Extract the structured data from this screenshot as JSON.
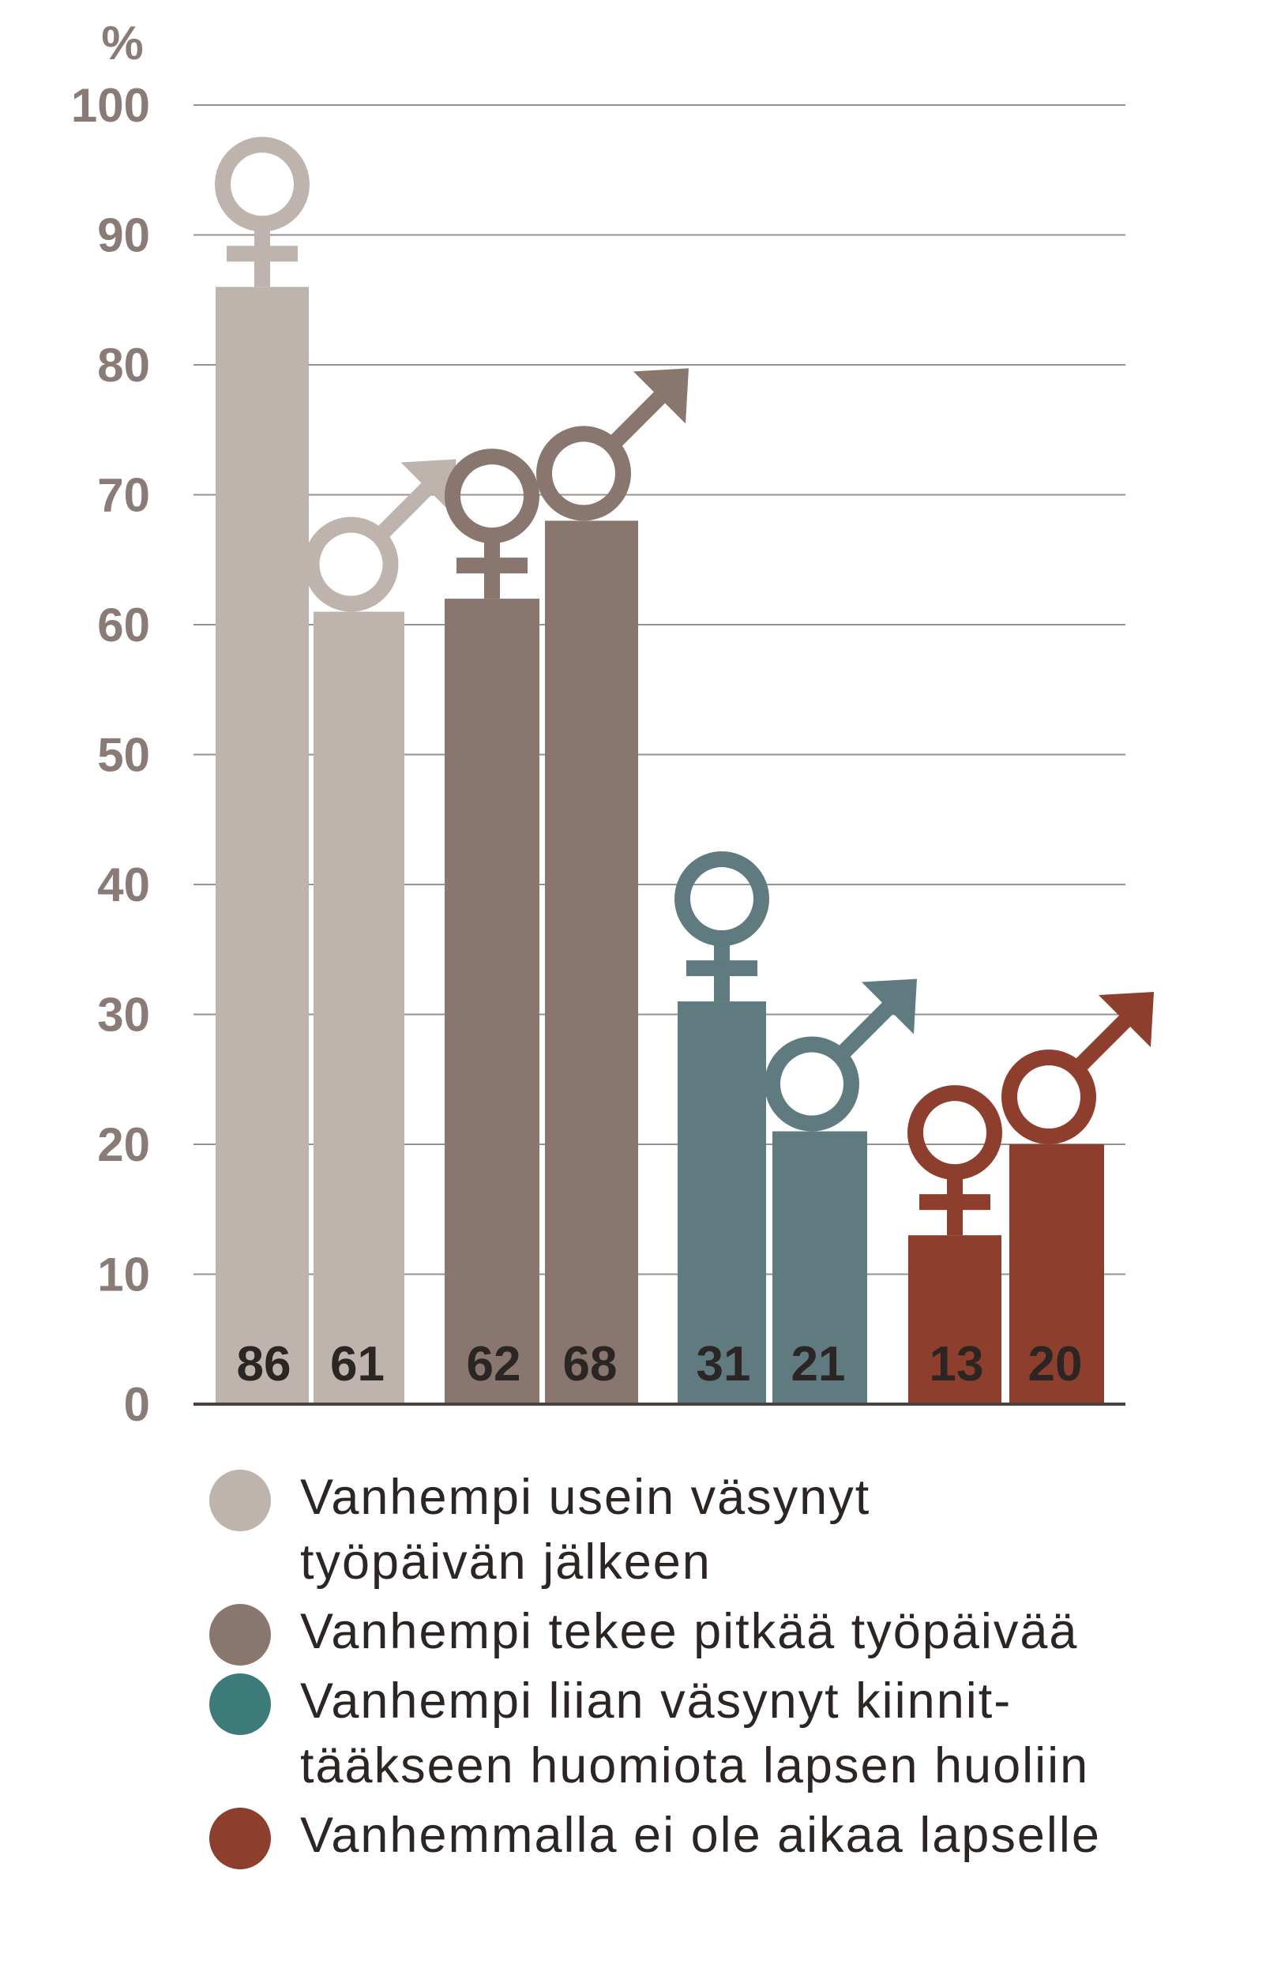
{
  "chart_data": {
    "type": "bar",
    "ylabel": "%",
    "ylim": [
      0,
      100
    ],
    "yticks": [
      "0",
      "10",
      "20",
      "30",
      "40",
      "50",
      "60",
      "70",
      "80",
      "90",
      "100"
    ],
    "grid": true,
    "categories": [
      "Vanhempi usein väsynyt\ntyöpäivän jälkeen",
      "Vanhempi tekee pitkää työpäivää",
      "Vanhempi liian väsynyt kiinnit-\ntääkseen huomiota lapsen huoliin",
      "Vanhemmalla ei ole aikaa lapselle"
    ],
    "colors": [
      "#bfb3ae",
      "#88766f",
      "#5f7b80",
      "#8e3e2c"
    ],
    "legend_dot_colors": [
      "#bfb3ae",
      "#88766f",
      "#3d7a7a",
      "#8e3e2c"
    ],
    "legend_position": "bottom",
    "series": [
      {
        "gender": "female",
        "icon": "female-symbol-icon",
        "values": [
          86,
          62,
          31,
          13
        ]
      },
      {
        "gender": "male",
        "icon": "male-symbol-icon",
        "values": [
          61,
          68,
          21,
          20
        ]
      }
    ],
    "data_labels": [
      [
        "86",
        "61"
      ],
      [
        "62",
        "68"
      ],
      [
        "31",
        "21"
      ],
      [
        "13",
        "20"
      ]
    ]
  }
}
